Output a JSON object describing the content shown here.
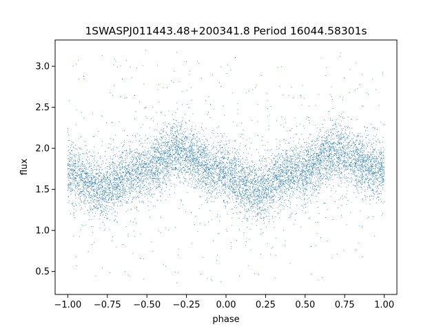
{
  "chart_data": {
    "type": "scatter",
    "title": "1SWASPJ011443.48+200341.8 Period 16044.58301s",
    "xlabel": "phase",
    "ylabel": "flux",
    "xlim": [
      -1.08,
      1.08
    ],
    "ylim": [
      0.22,
      3.32
    ],
    "x_ticks": [
      -1.0,
      -0.75,
      -0.5,
      -0.25,
      0.0,
      0.25,
      0.5,
      0.75,
      1.0
    ],
    "x_tick_labels": [
      "−1.00",
      "−0.75",
      "−0.50",
      "−0.25",
      "0.00",
      "0.25",
      "0.50",
      "0.75",
      "1.00"
    ],
    "y_ticks": [
      0.5,
      1.0,
      1.5,
      2.0,
      2.5,
      3.0
    ],
    "y_tick_labels": [
      "0.5",
      "1.0",
      "1.5",
      "2.0",
      "2.5",
      "3.0"
    ],
    "grid": false,
    "legend": "none",
    "marker_color": "#1f77b4",
    "series": [
      {
        "phase_range": [
          -1.0,
          1.0
        ],
        "trend": {
          "phase": [
            -1.0,
            -0.8,
            -0.55,
            -0.3,
            -0.05,
            0.2,
            0.45,
            0.7,
            1.0
          ],
          "flux": [
            1.72,
            1.52,
            1.72,
            1.95,
            1.72,
            1.5,
            1.72,
            1.94,
            1.72
          ]
        },
        "core_scatter": 0.17,
        "outlier_range": [
          0.35,
          3.2
        ]
      }
    ]
  }
}
